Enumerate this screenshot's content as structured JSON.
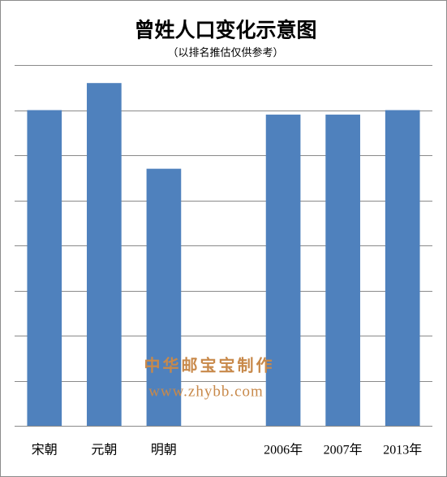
{
  "chart_data": {
    "type": "bar",
    "title": "曾姓人口变化示意图",
    "subtitle": "（以排名推估仅供参考）",
    "categories": [
      "宋朝",
      "元朝",
      "明朝",
      null,
      "2006年",
      "2007年",
      "2013年"
    ],
    "values": [
      7.0,
      7.6,
      5.7,
      null,
      6.9,
      6.9,
      7.0
    ],
    "color": "#4f81bd",
    "ylim": [
      0,
      8
    ],
    "yticks": [
      0,
      1,
      2,
      3,
      4,
      5,
      6,
      7,
      8
    ],
    "grid": true,
    "annotations": [
      "中华邮宝宝制作",
      "www.zhybb.com"
    ]
  }
}
